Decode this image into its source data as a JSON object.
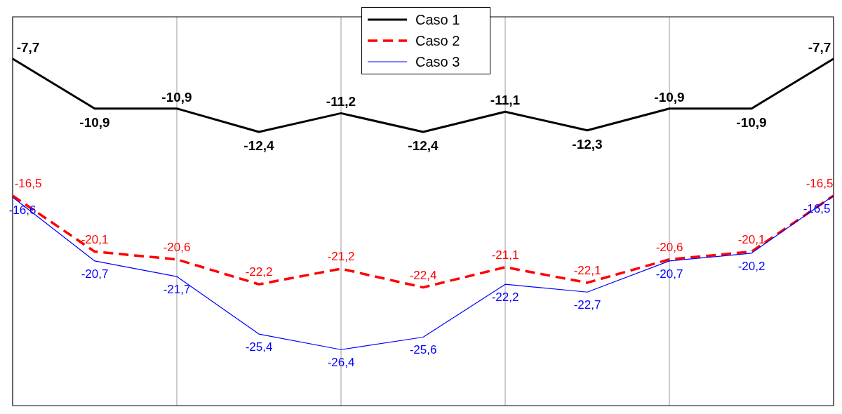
{
  "chart_data": {
    "type": "line",
    "categories": [
      null,
      null,
      null,
      null,
      null,
      null,
      null,
      null,
      null,
      null,
      null
    ],
    "ylim": [
      -30,
      -5
    ],
    "tick_labels": false,
    "grid": "x",
    "legend": "top",
    "marker": "none",
    "series": [
      {
        "name": "Caso 1",
        "color": "#000000",
        "line_style": "solid",
        "values": [
          -7.7,
          -10.9,
          -10.9,
          -12.4,
          -11.2,
          -12.4,
          -11.1,
          -12.3,
          -10.9,
          -10.9,
          -7.7
        ],
        "value_labels": [
          "-7,7",
          "-10,9",
          "-10,9",
          "-12,4",
          "-11,2",
          "-12,4",
          "-11,1",
          "-12,3",
          "-10,9",
          "-10,9",
          "-7,7"
        ]
      },
      {
        "name": "Caso 2",
        "color": "#ff0000",
        "line_style": "dashed",
        "values": [
          -16.5,
          -20.1,
          -20.6,
          -22.2,
          -21.2,
          -22.4,
          -21.1,
          -22.1,
          -20.6,
          -20.1,
          -16.5
        ],
        "value_labels": [
          "-16,5",
          "-20,1",
          "-20,6",
          "-22,2",
          "-21,2",
          "-22,4",
          "-21,1",
          "-22,1",
          "-20,6",
          "-20,1",
          "-16,5"
        ]
      },
      {
        "name": "Caso 3",
        "color": "#0000ff",
        "line_style": "solid",
        "values": [
          -16.6,
          -20.7,
          -21.7,
          -25.4,
          -26.4,
          -25.6,
          -22.2,
          -22.7,
          -20.7,
          -20.2,
          -16.5
        ],
        "value_labels": [
          "-16,6",
          "-20,7",
          "-21,7",
          "-25,4",
          "-26,4",
          "-25,6",
          "-22,2",
          "-22,7",
          "-20,7",
          "-20,2",
          "-16,5"
        ]
      }
    ]
  }
}
